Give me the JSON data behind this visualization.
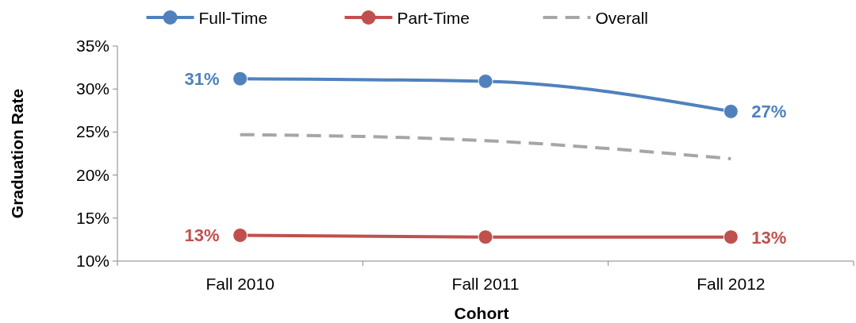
{
  "chart_data": {
    "type": "line",
    "xlabel": "Cohort",
    "ylabel": "Graduation Rate",
    "categories": [
      "Fall 2010",
      "Fall 2011",
      "Fall 2012"
    ],
    "series": [
      {
        "name": "Full-Time",
        "color": "#4f81bd",
        "values": [
          31.2,
          30.9,
          27.4
        ],
        "value_labels": [
          "31%",
          null,
          "27%"
        ],
        "marker": "circle",
        "line_style": "solid"
      },
      {
        "name": "Part-Time",
        "color": "#c0504d",
        "values": [
          13.0,
          12.8,
          12.8
        ],
        "value_labels": [
          "13%",
          null,
          "13%"
        ],
        "marker": "circle",
        "line_style": "solid"
      },
      {
        "name": "Overall",
        "color": "#a6a6a6",
        "values": [
          24.7,
          24.0,
          21.9
        ],
        "marker": "none",
        "line_style": "dashed"
      }
    ],
    "ylim": [
      10,
      35
    ],
    "yticks": [
      {
        "value": 10,
        "label": "10%"
      },
      {
        "value": 15,
        "label": "15%"
      },
      {
        "value": 20,
        "label": "20%"
      },
      {
        "value": 25,
        "label": "25%"
      },
      {
        "value": 30,
        "label": "30%"
      },
      {
        "value": 35,
        "label": "35%"
      }
    ],
    "grid": false,
    "legend": "top"
  }
}
